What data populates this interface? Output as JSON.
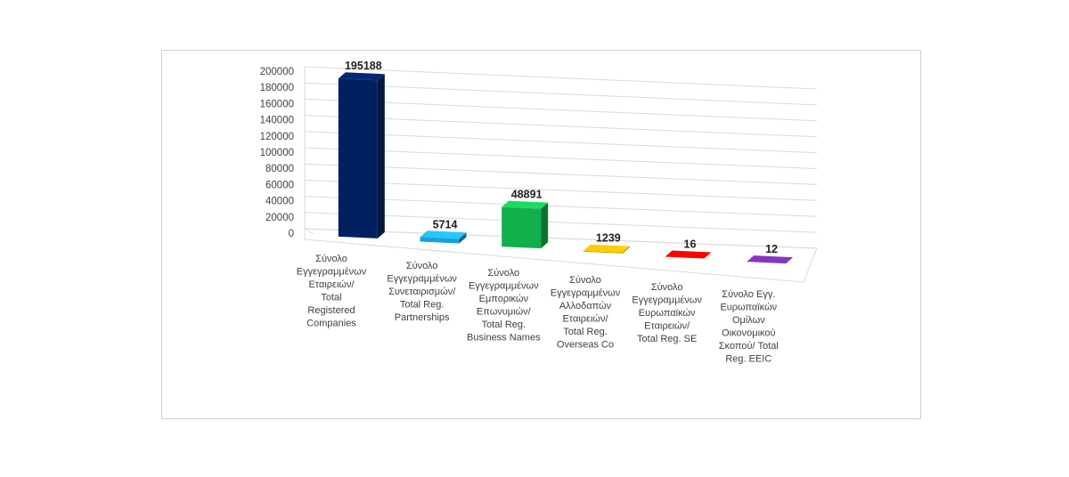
{
  "chart_data": {
    "type": "bar",
    "style": "3d-column",
    "categories": [
      [
        "Σύνολο",
        "Εγγεγραμμένων",
        "Εταιρειών/",
        "Total",
        "Registered",
        "Companies"
      ],
      [
        "Σύνολο",
        "Εγγεγραμμένων",
        "Συνεταιρισμών/",
        "Total Reg.",
        "Partnerships"
      ],
      [
        "Σύνολο",
        "Εγγεγραμμένων",
        "Εμπορικών",
        "Επωνυμιών/",
        "Total Reg.",
        "Business Names"
      ],
      [
        "Σύνολο",
        "Εγγεγραμμένων",
        "Αλλοδαπών",
        "Εταιρειών/",
        "Total Reg.",
        "Overseas Co"
      ],
      [
        "Σύνολο",
        "Εγγεγραμμένων",
        "Ευρωπαϊκών",
        "Εταιρειών/",
        "Total Reg. SE"
      ],
      [
        "Σύνολο Εγγ.",
        "Ευρωπαϊκών",
        "Ομίλων",
        "Οικονομικού",
        "Σκοπού/ Total",
        "Reg. EEIC"
      ]
    ],
    "values": [
      195188,
      5714,
      48891,
      1239,
      16,
      12
    ],
    "data_labels": [
      "195188",
      "5714",
      "48891",
      "1239",
      "16",
      "12"
    ],
    "colors": [
      "#002060",
      "#1a9fd8",
      "#12b04c",
      "#d4a500",
      "#cc0000",
      "#6b2a9a"
    ],
    "ylim": [
      0,
      200000
    ],
    "yticks": [
      "0",
      "20000",
      "40000",
      "60000",
      "80000",
      "100000",
      "120000",
      "140000",
      "160000",
      "180000",
      "200000"
    ],
    "grid": true,
    "legend": "none"
  }
}
